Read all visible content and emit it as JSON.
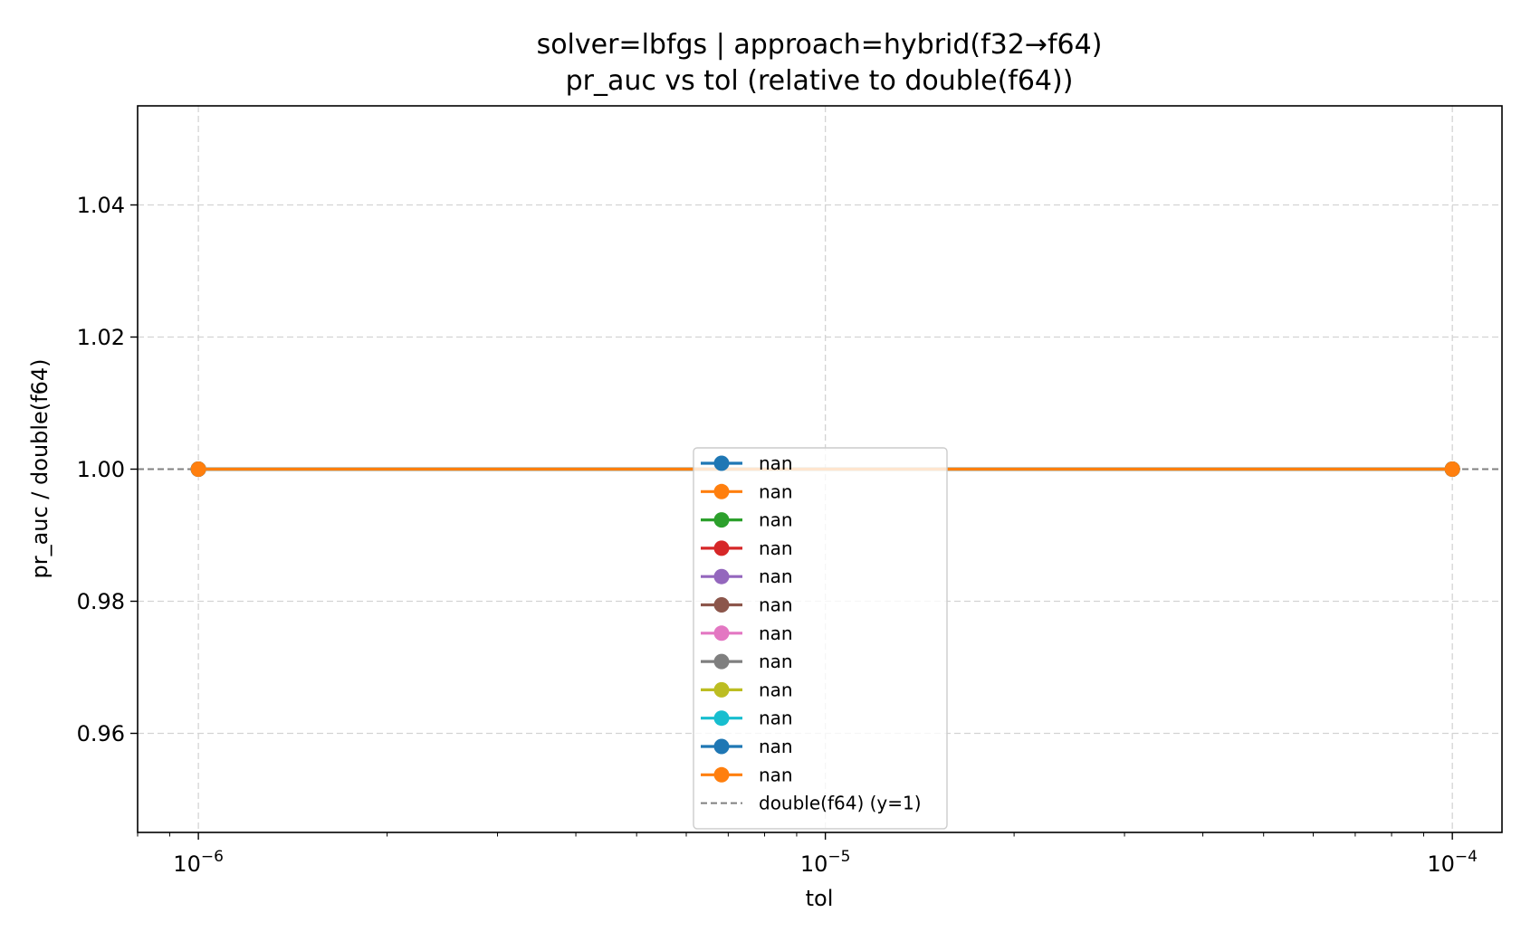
{
  "chart_data": {
    "type": "line",
    "title": "solver=lbfgs | approach=hybrid(f32→f64)",
    "subtitle": "pr_auc vs tol (relative to double(f64))",
    "xlabel": "tol",
    "ylabel": "pr_auc / double(f64)",
    "xscale": "log",
    "xlim": [
      8e-07,
      0.00012
    ],
    "ylim": [
      0.945,
      1.055
    ],
    "x_ticks": [
      {
        "value": 1e-06,
        "base": "10",
        "exp": "−6"
      },
      {
        "value": 1e-05,
        "base": "10",
        "exp": "−5"
      },
      {
        "value": 0.0001,
        "base": "10",
        "exp": "−4"
      }
    ],
    "y_ticks": [
      {
        "value": 0.96,
        "label": "0.96"
      },
      {
        "value": 0.98,
        "label": "0.98"
      },
      {
        "value": 1.0,
        "label": "1.00"
      },
      {
        "value": 1.02,
        "label": "1.02"
      },
      {
        "value": 1.04,
        "label": "1.04"
      }
    ],
    "grid": true,
    "legend_position": "bottom-center",
    "x": [
      1e-06,
      0.0001
    ],
    "series": [
      {
        "name": "nan",
        "color": "#1f77b4",
        "values": [
          1.0,
          1.0
        ]
      },
      {
        "name": "nan",
        "color": "#ff7f0e",
        "values": [
          1.0,
          1.0
        ]
      },
      {
        "name": "nan",
        "color": "#2ca02c",
        "values": [
          1.0,
          1.0
        ]
      },
      {
        "name": "nan",
        "color": "#d62728",
        "values": [
          1.0,
          1.0
        ]
      },
      {
        "name": "nan",
        "color": "#9467bd",
        "values": [
          1.0,
          1.0
        ]
      },
      {
        "name": "nan",
        "color": "#8c564b",
        "values": [
          1.0,
          1.0
        ]
      },
      {
        "name": "nan",
        "color": "#e377c2",
        "values": [
          1.0,
          1.0
        ]
      },
      {
        "name": "nan",
        "color": "#7f7f7f",
        "values": [
          1.0,
          1.0
        ]
      },
      {
        "name": "nan",
        "color": "#bcbd22",
        "values": [
          1.0,
          1.0
        ]
      },
      {
        "name": "nan",
        "color": "#17becf",
        "values": [
          1.0,
          1.0
        ]
      },
      {
        "name": "nan",
        "color": "#1f77b4",
        "values": [
          1.0,
          1.0
        ]
      },
      {
        "name": "nan",
        "color": "#ff7f0e",
        "values": [
          1.0,
          1.0
        ]
      }
    ],
    "reference_line": {
      "name": "double(f64) (y=1)",
      "y": 1.0,
      "color": "#808080"
    }
  }
}
